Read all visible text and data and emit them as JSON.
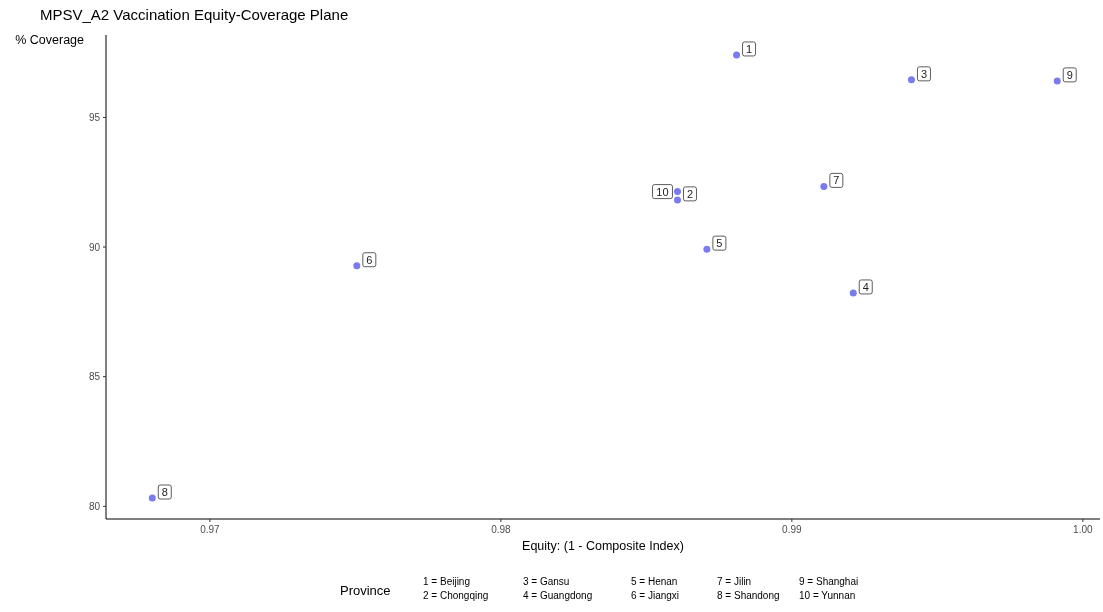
{
  "chart_data": {
    "type": "scatter",
    "title": "MPSV_A2 Vaccination Equity-Coverage Plane",
    "xlabel": "Equity: (1 - Composite Index)",
    "ylabel": "% Coverage",
    "x": [
      0.9881,
      0.98607,
      0.99411,
      0.99211,
      0.98708,
      0.97505,
      0.9911,
      0.96802,
      0.99912,
      0.98607
    ],
    "series": [
      {
        "color": "#7b7bf0",
        "values": [
          97.41,
          91.82,
          96.45,
          88.23,
          89.92,
          89.28,
          92.34,
          80.32,
          96.41,
          92.14
        ]
      }
    ],
    "annotations": [
      {
        "text": "1",
        "x": 0.9881,
        "y": 97.41
      },
      {
        "text": "2",
        "x": 0.98607,
        "y": 91.82
      },
      {
        "text": "3",
        "x": 0.99411,
        "y": 96.45
      },
      {
        "text": "4",
        "x": 0.99211,
        "y": 88.23
      },
      {
        "text": "5",
        "x": 0.98708,
        "y": 89.92
      },
      {
        "text": "6",
        "x": 0.97505,
        "y": 89.28
      },
      {
        "text": "7",
        "x": 0.9911,
        "y": 92.34
      },
      {
        "text": "8",
        "x": 0.96802,
        "y": 80.32
      },
      {
        "text": "9",
        "x": 0.99912,
        "y": 96.41
      },
      {
        "text": "10",
        "x": 0.98607,
        "y": 92.14
      },
      "1 = Beijing",
      "2 = Chongqing",
      "3 = Gansu",
      "4 = Guangdong",
      "5 = Henan",
      "6 = Jiangxi",
      "7 = Jilin",
      "8 = Shandong",
      "9 = Shanghai",
      "10 = Yunnan"
    ],
    "legend_title": "Province",
    "xlim": [
      0.96643,
      1.00059
    ],
    "xticks": [
      0.97,
      0.98,
      0.99,
      {
        "value": 1,
        "label": "1.00"
      }
    ],
    "ylim": [
      79.51,
      98.18
    ],
    "yticks": [
      80,
      85,
      90,
      95
    ],
    "grid": false,
    "marker": "circle"
  }
}
